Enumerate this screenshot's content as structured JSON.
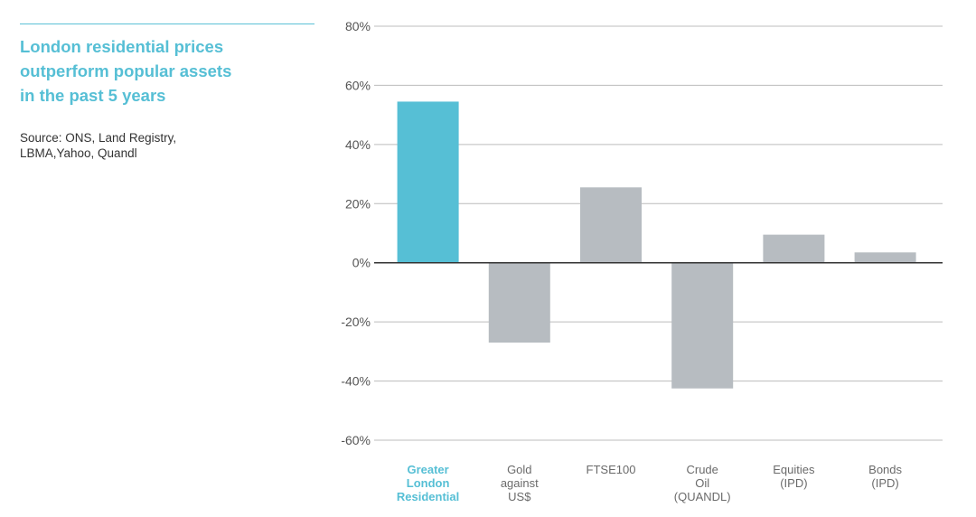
{
  "title_lines": [
    "London residential prices",
    "outperform popular assets",
    "in the past 5 years"
  ],
  "source_lines": [
    "Source: ONS, Land Registry,",
    "LBMA,Yahoo, Quandl"
  ],
  "colors": {
    "highlight": "#56bfd5",
    "default": "#b7bcc1",
    "grid": "#bcbcbc",
    "axis": "#333333"
  },
  "chart_data": {
    "type": "bar",
    "categories": [
      [
        "Greater",
        "London",
        "Residential"
      ],
      [
        "Gold",
        "against",
        "US$"
      ],
      [
        "FTSE100"
      ],
      [
        "Crude",
        "Oil",
        "(QUANDL)"
      ],
      [
        "Equities",
        "(IPD)"
      ],
      [
        "Bonds",
        "(IPD)"
      ]
    ],
    "values": [
      54.5,
      -27,
      25.5,
      -42.5,
      9.5,
      3.5
    ],
    "highlight_index": 0,
    "ylim": [
      -60,
      80
    ],
    "yticks": [
      80,
      60,
      40,
      20,
      0,
      -20,
      -40,
      -60
    ],
    "ytick_labels": [
      "80%",
      "60%",
      "40%",
      "20%",
      "0%",
      "-20%",
      "-40%",
      "-60%"
    ],
    "grid": true,
    "title": "",
    "xlabel": "",
    "ylabel": ""
  }
}
